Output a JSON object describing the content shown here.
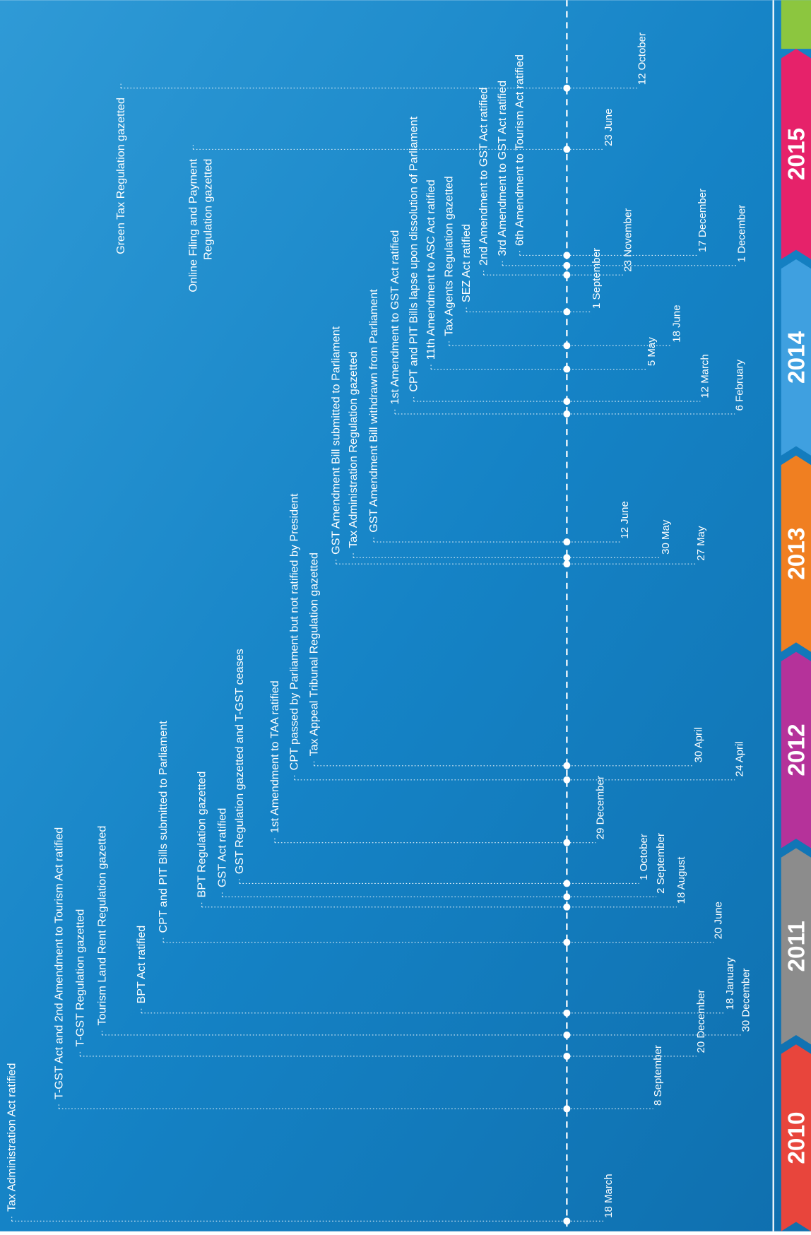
{
  "timeline": {
    "events": [
      {
        "label": "Tax Administration Act ratified",
        "date": "18 March"
      },
      {
        "label": "T-GST Act and 2nd Amendment to Tourism Act ratified",
        "date": "8 September"
      },
      {
        "label": "T-GST Regulation gazetted",
        "date": "20 December"
      },
      {
        "label": "Tourism Land Rent Regulation gazetted",
        "date": "30 December"
      },
      {
        "label": "BPT Act ratified",
        "date": "18 January"
      },
      {
        "label": "CPT and PIT Bills submitted to Parliament",
        "date": "20 June"
      },
      {
        "label": "BPT Regulation gazetted",
        "date": "18 August"
      },
      {
        "label": "GST Act ratified",
        "date": "2 September"
      },
      {
        "label": "GST Regulation gazetted and T-GST ceases",
        "date": "1 October"
      },
      {
        "label": "1st Amendment to TAA ratified",
        "date": "29 December"
      },
      {
        "label": "CPT passed by Parliament but not ratified by President",
        "date": "24 April"
      },
      {
        "label": "Tax Appeal Tribunal Regulation gazetted",
        "date": "30 April"
      },
      {
        "label": "GST Amendment Bill submitted to Parliament",
        "date": "27 May"
      },
      {
        "label": "Tax Administration Regulation gazetted",
        "date": "30 May"
      },
      {
        "label": "GST Amendment Bill withdrawn from Parliament",
        "date": "12 June"
      },
      {
        "label": "1st Amendment to GST Act ratified",
        "date": "6 February"
      },
      {
        "label": "CPT and PIT Bills lapse upon dissolution of Parliament",
        "date": "12 March"
      },
      {
        "label": "11th Amendment to ASC Act ratified",
        "date": "5 May"
      },
      {
        "label": "Tax Agents Regulation gazetted",
        "date": "18 June"
      },
      {
        "label": "SEZ Act ratified",
        "date": "1 September"
      },
      {
        "label": "2nd Amendment to GST Act ratified",
        "date": "23 November"
      },
      {
        "label": "3rd Amendment to GST Act ratified",
        "date": "1 December"
      },
      {
        "label": "6th Amendment to Tourism Act ratified",
        "date": "17 December"
      },
      {
        "label": "Online Filing and Payment",
        "label2": "Regulation gazetted",
        "date": "23 June"
      },
      {
        "label": "Green Tax Regulation gazetted",
        "date": "12 October"
      }
    ],
    "years": [
      "2010",
      "2011",
      "2012",
      "2013",
      "2014",
      "2015"
    ]
  }
}
